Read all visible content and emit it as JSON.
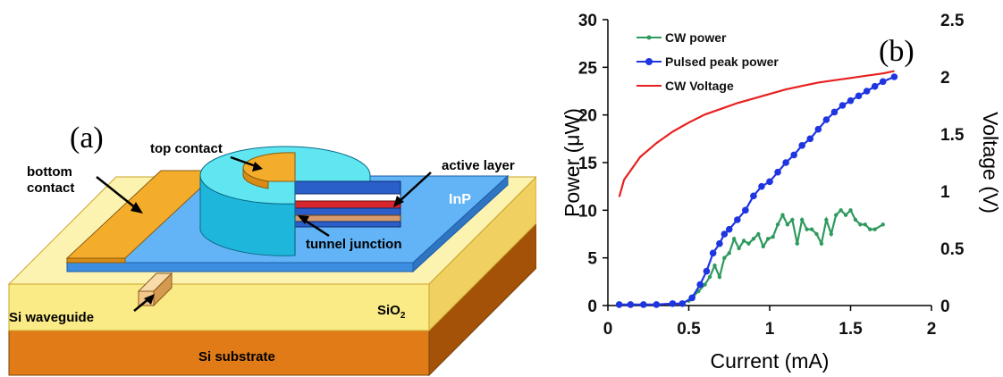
{
  "panel_a": {
    "panel_label": "(a)",
    "labels": {
      "bottom_contact_1": "bottom",
      "bottom_contact_2": "contact",
      "top_contact": "top contact",
      "active_layer": "active layer",
      "inp": "InP",
      "tunnel_junction": "tunnel junction",
      "si_waveguide": "Si waveguide",
      "sio2": "SiO",
      "sio2_sub": "2",
      "si_substrate": "Si substrate"
    },
    "colors": {
      "substrate": "#e07b18",
      "sio2": "#fbeb86",
      "inp": "#5aaef2",
      "contact": "#f4ad2b",
      "disk": "#38e0ec",
      "active": "#d8262e",
      "tunnel": "#d49a6c",
      "layer_blue": "#2a5ec8"
    }
  },
  "panel_b": {
    "panel_label": "(b)",
    "xlabel": "Current (mA)",
    "ylabel_left": "Power (μW)",
    "ylabel_right": "Voltage (V)",
    "x_ticks": [
      "0",
      "0.5",
      "1",
      "1.5",
      "2"
    ],
    "y_left_ticks": [
      "0",
      "5",
      "10",
      "15",
      "20",
      "25",
      "30"
    ],
    "y_right_ticks": [
      "0",
      "0.5",
      "1",
      "1.5",
      "2",
      "2.5"
    ],
    "legend": [
      "CW power",
      "Pulsed peak power",
      "CW Voltage"
    ]
  },
  "chart_data": {
    "type": "line",
    "xlim": [
      0,
      2
    ],
    "ylim_left": [
      0,
      30
    ],
    "ylim_right": [
      0,
      2.5
    ],
    "legend_position": "top-left",
    "grid": false,
    "series": [
      {
        "name": "CW power",
        "axis": "left",
        "color": "#2e9a5e",
        "marker": "small-dot",
        "x": [
          0.5,
          0.53,
          0.56,
          0.6,
          0.63,
          0.66,
          0.69,
          0.72,
          0.75,
          0.78,
          0.81,
          0.84,
          0.87,
          0.9,
          0.93,
          0.96,
          0.99,
          1.02,
          1.05,
          1.08,
          1.11,
          1.14,
          1.17,
          1.2,
          1.23,
          1.26,
          1.29,
          1.32,
          1.35,
          1.38,
          1.41,
          1.44,
          1.47,
          1.5,
          1.53,
          1.56,
          1.59,
          1.62,
          1.65,
          1.7
        ],
        "y": [
          0.5,
          1.0,
          1.5,
          2.2,
          3.0,
          4.2,
          3.0,
          5.0,
          5.5,
          7.0,
          6.0,
          6.8,
          6.5,
          7.0,
          7.5,
          6.2,
          7.0,
          7.2,
          8.5,
          9.5,
          8.5,
          9.0,
          6.5,
          9.0,
          8.0,
          8.0,
          7.5,
          6.5,
          9.0,
          7.5,
          9.5,
          10.0,
          9.5,
          10.0,
          9.0,
          8.5,
          8.5,
          8.0,
          8.0,
          8.5
        ]
      },
      {
        "name": "Pulsed peak power",
        "axis": "left",
        "color": "#1f35e0",
        "marker": "dot",
        "x": [
          0.07,
          0.14,
          0.22,
          0.3,
          0.4,
          0.46,
          0.52,
          0.57,
          0.61,
          0.65,
          0.69,
          0.72,
          0.75,
          0.8,
          0.85,
          0.9,
          0.95,
          1.0,
          1.05,
          1.1,
          1.15,
          1.2,
          1.25,
          1.3,
          1.35,
          1.4,
          1.45,
          1.5,
          1.55,
          1.6,
          1.65,
          1.7,
          1.77
        ],
        "y": [
          0.1,
          0.1,
          0.1,
          0.1,
          0.2,
          0.2,
          0.8,
          2.2,
          3.6,
          5.5,
          6.5,
          7.5,
          8.0,
          9.0,
          10.0,
          11.5,
          12.5,
          13.0,
          14.0,
          15.0,
          15.8,
          16.8,
          17.5,
          18.5,
          19.5,
          20.3,
          21.0,
          21.5,
          22.0,
          22.5,
          23.0,
          23.5,
          24.0
        ]
      },
      {
        "name": "CW Voltage",
        "axis": "right",
        "color": "#e8201f",
        "marker": "none",
        "x": [
          0.07,
          0.1,
          0.15,
          0.2,
          0.3,
          0.4,
          0.5,
          0.6,
          0.7,
          0.8,
          0.9,
          1.0,
          1.1,
          1.2,
          1.3,
          1.4,
          1.5,
          1.6,
          1.7,
          1.77
        ],
        "y": [
          0.95,
          1.1,
          1.2,
          1.3,
          1.42,
          1.52,
          1.6,
          1.67,
          1.72,
          1.77,
          1.81,
          1.85,
          1.89,
          1.92,
          1.95,
          1.97,
          1.99,
          2.01,
          2.03,
          2.05
        ]
      }
    ]
  }
}
